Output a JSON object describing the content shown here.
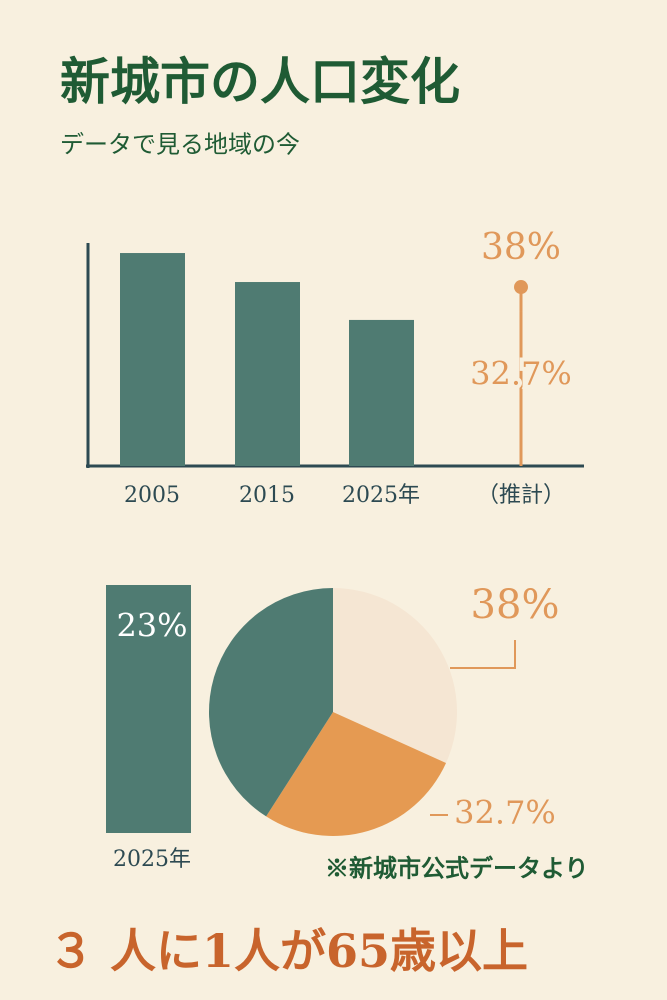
{
  "header": {
    "title": "新城市の人口変化",
    "subtitle": "データで見る地域の今"
  },
  "chart_data": [
    {
      "type": "bar",
      "categories": [
        "2005",
        "2015",
        "2025年",
        "（推計）"
      ],
      "values": [
        95.5,
        82.5,
        65.5,
        null
      ],
      "color": "#4f7b72",
      "ylim": [
        0,
        100
      ],
      "markers": {
        "values": [
          38,
          32.7
        ],
        "value_labels": [
          "38%",
          "32.7%"
        ],
        "color": "#e0985a"
      }
    },
    {
      "type": "bar",
      "categories": [
        "2025年"
      ],
      "values": [
        23
      ],
      "value_labels": [
        "23%"
      ],
      "color": "#4f7b72"
    },
    {
      "type": "pie",
      "values": [
        38,
        32.7,
        49
      ],
      "value_labels": [
        "38%",
        "32.7%",
        null
      ],
      "colors": [
        "#f5e6d3",
        "#e59a52",
        "#4f7b72"
      ]
    }
  ],
  "footer": {
    "note": "※新城市公式データより",
    "headline": "３ 人に1人が65歳以上"
  }
}
